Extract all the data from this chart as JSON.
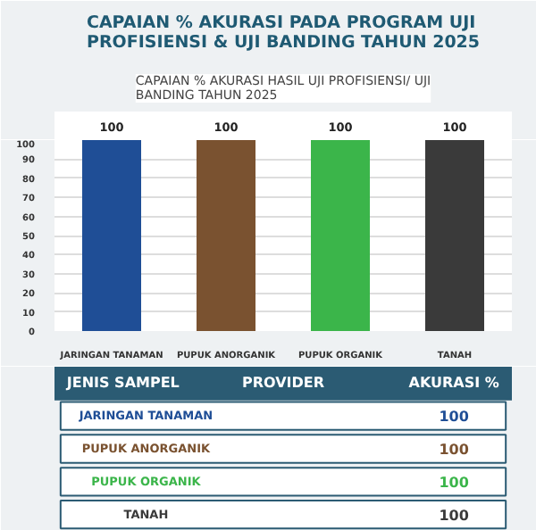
{
  "chart_data": {
    "type": "bar",
    "title": "CAPAIAN % AKURASI PADA PROGRAM UJI PROFISIENSI & UJI BANDING TAHUN 2025",
    "subtitle": "CAPAIAN % AKURASI HASIL UJI PROFISIENSI/ UJI BANDING TAHUN 2025",
    "categories": [
      "JARINGAN TANAMAN",
      "PUPUK ANORGANIK",
      "PUPUK ORGANIK",
      "TANAH"
    ],
    "values": [
      100,
      100,
      100,
      100
    ],
    "colors": [
      "#1f4e96",
      "#7a5230",
      "#3bb54a",
      "#3a3a3a"
    ],
    "ylim": [
      0,
      100
    ],
    "yticks": [
      0,
      10,
      20,
      30,
      40,
      50,
      60,
      70,
      80,
      90,
      100
    ],
    "grid": "y",
    "data_labels": true,
    "annotations": [
      "JENIS SAMPEL",
      "PROVIDER",
      "AKURASI %",
      "100",
      "100",
      "100",
      "100"
    ]
  }
}
